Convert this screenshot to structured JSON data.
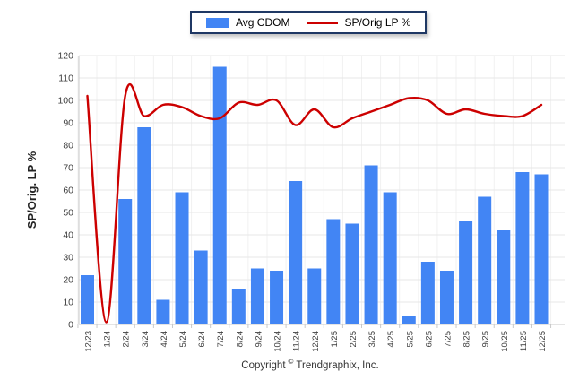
{
  "legend_note": "legend labels are bound from chart_data.series names",
  "copyright": {
    "prefix": "Copyright",
    "symbol": "©",
    "company": "Trendgraphix, Inc."
  },
  "chart_data": {
    "type": "combo",
    "title": "",
    "xlabel": "",
    "ylabel": "SP/Orig. LP %",
    "ylim": [
      0,
      120
    ],
    "yticks": [
      0,
      10,
      20,
      30,
      40,
      50,
      60,
      70,
      80,
      90,
      100,
      110,
      120
    ],
    "grid": true,
    "legend_position": "top",
    "categories": [
      "12/23",
      "1/24",
      "2/24",
      "3/24",
      "4/24",
      "5/24",
      "6/24",
      "7/24",
      "8/24",
      "9/24",
      "10/24",
      "11/24",
      "12/24",
      "1/25",
      "2/25",
      "3/25",
      "4/25",
      "5/25",
      "6/25",
      "7/25",
      "8/25",
      "9/25",
      "10/25",
      "11/25",
      "12/25"
    ],
    "series": [
      {
        "name": "Avg CDOM",
        "type": "bar",
        "color": "#4285F4",
        "values": [
          22,
          0,
          56,
          88,
          11,
          59,
          33,
          115,
          16,
          25,
          24,
          64,
          25,
          47,
          45,
          71,
          59,
          4,
          28,
          24,
          46,
          57,
          42,
          68,
          67
        ]
      },
      {
        "name": "SP/Orig LP %",
        "type": "line",
        "color": "#CC0000",
        "values": [
          102,
          1,
          102,
          93,
          98,
          97,
          93,
          92,
          99,
          98,
          100,
          89,
          96,
          88,
          92,
          95,
          98,
          101,
          100,
          94,
          96,
          94,
          93,
          93,
          98
        ]
      }
    ]
  }
}
